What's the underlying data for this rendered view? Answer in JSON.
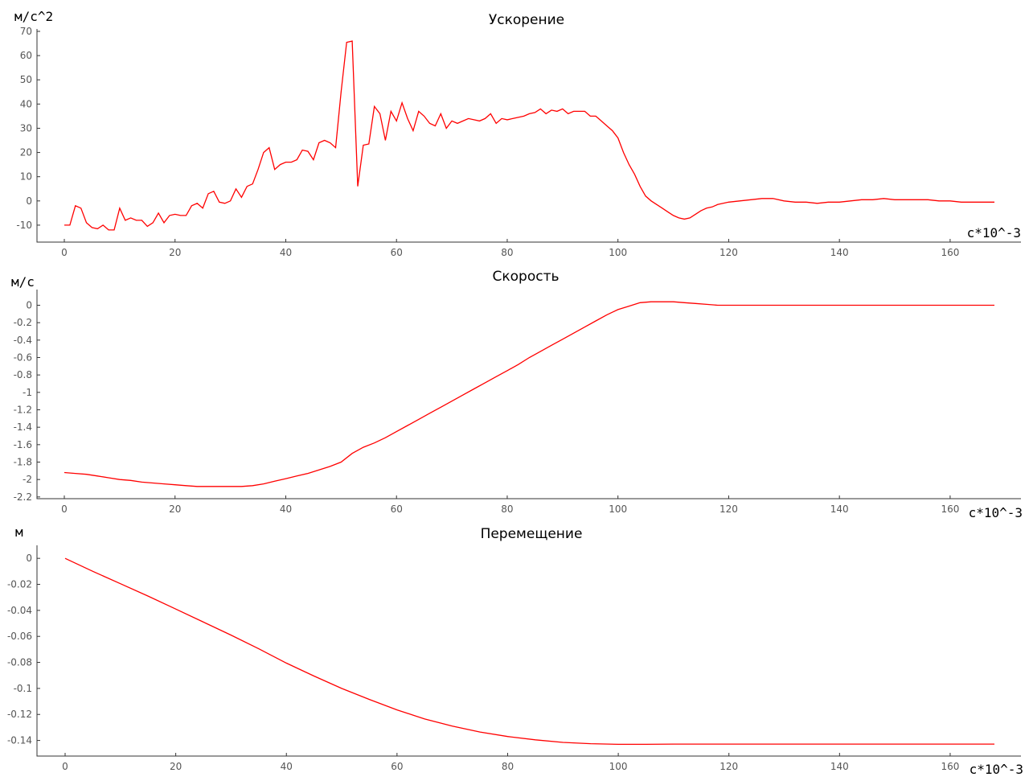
{
  "chart_data": [
    {
      "type": "line",
      "title": "Ускорение",
      "ylabel": "м/с^2",
      "xlabel": "с*10^-3",
      "xlim": [
        0,
        168
      ],
      "ylim": [
        -17,
        71
      ],
      "xticks": [
        0,
        20,
        40,
        60,
        80,
        100,
        120,
        140,
        160
      ],
      "yticks": [
        -10,
        0,
        10,
        20,
        30,
        40,
        50,
        60,
        70
      ],
      "ytick_labels": [
        "-10",
        "0",
        "10",
        "20",
        "30",
        "40",
        "50",
        "60",
        "70"
      ],
      "grid": false,
      "color": "#ff0000",
      "x": [
        0,
        1,
        2,
        3,
        4,
        5,
        6,
        7,
        8,
        9,
        10,
        11,
        12,
        13,
        14,
        15,
        16,
        17,
        18,
        19,
        20,
        21,
        22,
        23,
        24,
        25,
        26,
        27,
        28,
        29,
        30,
        31,
        32,
        33,
        34,
        35,
        36,
        37,
        38,
        39,
        40,
        41,
        42,
        43,
        44,
        45,
        46,
        47,
        48,
        49,
        50,
        51,
        52,
        53,
        54,
        55,
        56,
        57,
        58,
        59,
        60,
        61,
        62,
        63,
        64,
        65,
        66,
        67,
        68,
        69,
        70,
        71,
        72,
        73,
        74,
        75,
        76,
        77,
        78,
        79,
        80,
        81,
        82,
        83,
        84,
        85,
        86,
        87,
        88,
        89,
        90,
        91,
        92,
        93,
        94,
        95,
        96,
        97,
        98,
        99,
        100,
        101,
        102,
        103,
        104,
        105,
        106,
        107,
        108,
        109,
        110,
        111,
        112,
        113,
        114,
        115,
        116,
        117,
        118,
        119,
        120,
        122,
        124,
        126,
        128,
        130,
        132,
        134,
        136,
        138,
        140,
        142,
        144,
        146,
        148,
        150,
        152,
        154,
        156,
        158,
        160,
        162,
        164,
        166,
        168
      ],
      "y": [
        -10,
        -10,
        -2,
        -3,
        -9,
        -11,
        -11.5,
        -10,
        -12,
        -12,
        -3,
        -8,
        -7,
        -8,
        -8,
        -10.5,
        -9,
        -5,
        -9,
        -6,
        -5.5,
        -6,
        -6,
        -2,
        -1,
        -3,
        3,
        4,
        -0.5,
        -1,
        0,
        5,
        1.5,
        6,
        7,
        13,
        20,
        22,
        13,
        15,
        16,
        16,
        17,
        21,
        20.5,
        17,
        24,
        25,
        24,
        22,
        45,
        65.5,
        66,
        6,
        23,
        23.5,
        39,
        36,
        25,
        37,
        33,
        40.5,
        34,
        29,
        37,
        35,
        32,
        31,
        36,
        30,
        33,
        32,
        33,
        34,
        33.5,
        33,
        34,
        36,
        32,
        34,
        33.5,
        34,
        34.5,
        35,
        36,
        36.5,
        38,
        36,
        37.5,
        37,
        38,
        36,
        37,
        37,
        37,
        35,
        35,
        33,
        31,
        29,
        26,
        20,
        15,
        11,
        6,
        2,
        0,
        -1.5,
        -3,
        -4.5,
        -6,
        -7,
        -7.5,
        -7,
        -5.5,
        -4,
        -3,
        -2.5,
        -1.5,
        -1,
        -0.5,
        0,
        0.5,
        1,
        1,
        0,
        -0.5,
        -0.5,
        -1,
        -0.5,
        -0.5,
        0,
        0.5,
        0.5,
        1,
        0.5,
        0.5,
        0.5,
        0.5,
        0,
        0,
        -0.5,
        -0.5,
        -0.5,
        -0.5
      ]
    },
    {
      "type": "line",
      "title": "Скорость",
      "ylabel": "м/с",
      "xlabel": "с*10^-3",
      "xlim": [
        0,
        168
      ],
      "ylim": [
        -2.22,
        0.18
      ],
      "xticks": [
        0,
        20,
        40,
        60,
        80,
        100,
        120,
        140,
        160
      ],
      "yticks": [
        -2.2,
        -2,
        -1.8,
        -1.6,
        -1.4,
        -1.2,
        -1,
        -0.8,
        -0.6,
        -0.4,
        -0.2,
        0
      ],
      "ytick_labels": [
        "-2.2",
        "-2",
        "-1.8",
        "-1.6",
        "-1.4",
        "-1.2",
        "-1",
        "-0.8",
        "-0.6",
        "-0.4",
        "-0.2",
        "0"
      ],
      "grid": false,
      "color": "#ff0000",
      "x": [
        0,
        2,
        4,
        6,
        8,
        10,
        12,
        14,
        16,
        18,
        20,
        22,
        24,
        26,
        28,
        30,
        32,
        34,
        36,
        38,
        40,
        42,
        44,
        46,
        48,
        50,
        52,
        54,
        56,
        58,
        60,
        62,
        64,
        66,
        68,
        70,
        72,
        74,
        76,
        78,
        80,
        82,
        84,
        86,
        88,
        90,
        92,
        94,
        96,
        98,
        100,
        102,
        104,
        106,
        108,
        110,
        112,
        114,
        116,
        118,
        120,
        124,
        128,
        132,
        136,
        140,
        144,
        148,
        152,
        156,
        160,
        164,
        168
      ],
      "y": [
        -1.92,
        -1.93,
        -1.94,
        -1.96,
        -1.98,
        -2.0,
        -2.01,
        -2.03,
        -2.04,
        -2.05,
        -2.06,
        -2.07,
        -2.08,
        -2.08,
        -2.08,
        -2.08,
        -2.08,
        -2.07,
        -2.05,
        -2.02,
        -1.99,
        -1.96,
        -1.93,
        -1.89,
        -1.85,
        -1.8,
        -1.7,
        -1.63,
        -1.58,
        -1.52,
        -1.45,
        -1.38,
        -1.31,
        -1.24,
        -1.17,
        -1.1,
        -1.03,
        -0.96,
        -0.89,
        -0.82,
        -0.75,
        -0.68,
        -0.6,
        -0.53,
        -0.46,
        -0.39,
        -0.32,
        -0.25,
        -0.18,
        -0.11,
        -0.05,
        -0.01,
        0.03,
        0.04,
        0.04,
        0.04,
        0.03,
        0.02,
        0.01,
        0.0,
        0.0,
        0.0,
        0.0,
        0.0,
        0.0,
        0.0,
        0.0,
        0.0,
        0.0,
        0.0,
        0.0,
        0.0,
        0.0
      ]
    },
    {
      "type": "line",
      "title": "Перемещение",
      "ylabel": "м",
      "xlabel": "с*10^-3",
      "xlim": [
        0,
        168
      ],
      "ylim": [
        -0.152,
        0.01
      ],
      "xticks": [
        0,
        20,
        40,
        60,
        80,
        100,
        120,
        140,
        160
      ],
      "yticks": [
        -0.14,
        -0.12,
        -0.1,
        -0.08,
        -0.06,
        -0.04,
        -0.02,
        0
      ],
      "ytick_labels": [
        "-0.14",
        "-0.12",
        "-0.1",
        "-0.08",
        "-0.06",
        "-0.04",
        "-0.02",
        "0"
      ],
      "grid": false,
      "color": "#ff0000",
      "x": [
        0,
        5,
        10,
        15,
        20,
        25,
        30,
        35,
        40,
        45,
        50,
        55,
        60,
        65,
        70,
        75,
        80,
        85,
        90,
        95,
        100,
        105,
        110,
        120,
        130,
        140,
        150,
        160,
        168
      ],
      "y": [
        0.0,
        -0.01,
        -0.0195,
        -0.029,
        -0.039,
        -0.049,
        -0.059,
        -0.0695,
        -0.0805,
        -0.0905,
        -0.1,
        -0.1085,
        -0.1165,
        -0.1235,
        -0.129,
        -0.1335,
        -0.137,
        -0.1395,
        -0.1415,
        -0.1425,
        -0.143,
        -0.143,
        -0.1428,
        -0.1428,
        -0.1428,
        -0.1428,
        -0.1428,
        -0.1428,
        -0.1428
      ]
    }
  ]
}
